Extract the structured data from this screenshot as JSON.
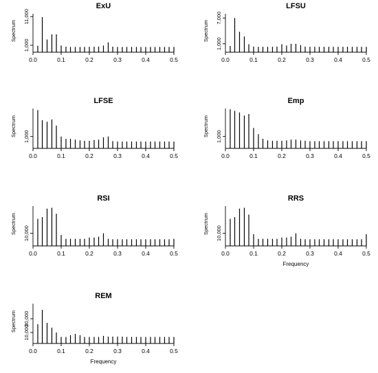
{
  "chart_data": [
    {
      "type": "bar",
      "title": "ExU",
      "ylabel": "Spectrum",
      "xlabel": "",
      "xlim": [
        0,
        0.5
      ],
      "x_ticks": [
        "0.0",
        "0.1",
        "0.2",
        "0.3",
        "0.4",
        "0.5"
      ],
      "y_ticks": [
        "1,000",
        "11,000"
      ],
      "ylim": [
        0,
        12000
      ],
      "x": [
        0.017,
        0.033,
        0.05,
        0.067,
        0.083,
        0.1,
        0.117,
        0.133,
        0.15,
        0.167,
        0.183,
        0.2,
        0.217,
        0.233,
        0.25,
        0.267,
        0.283,
        0.3,
        0.317,
        0.333,
        0.35,
        0.367,
        0.383,
        0.4,
        0.417,
        0.433,
        0.45,
        0.467,
        0.483,
        0.5
      ],
      "values": [
        800,
        10800,
        3000,
        4800,
        4800,
        900,
        500,
        400,
        400,
        400,
        400,
        450,
        500,
        550,
        900,
        2000,
        500,
        400,
        400,
        400,
        400,
        400,
        400,
        400,
        400,
        400,
        400,
        400,
        400,
        400
      ]
    },
    {
      "type": "bar",
      "title": "LFSU",
      "ylabel": "Spectrum",
      "xlabel": "",
      "xlim": [
        0,
        0.5
      ],
      "x_ticks": [
        "0.0",
        "0.1",
        "0.2",
        "0.3",
        "0.4",
        "0.5"
      ],
      "y_ticks": [
        "1,000",
        "7,000"
      ],
      "ylim": [
        0,
        8000
      ],
      "x": [
        0.017,
        0.033,
        0.05,
        0.067,
        0.083,
        0.1,
        0.117,
        0.133,
        0.15,
        0.167,
        0.183,
        0.2,
        0.217,
        0.233,
        0.25,
        0.267,
        0.283,
        0.3,
        0.317,
        0.333,
        0.35,
        0.367,
        0.383,
        0.4,
        0.417,
        0.433,
        0.45,
        0.467,
        0.483,
        0.5
      ],
      "values": [
        500,
        7000,
        3800,
        2700,
        900,
        350,
        300,
        300,
        300,
        300,
        350,
        900,
        600,
        1000,
        1000,
        700,
        350,
        300,
        300,
        300,
        300,
        300,
        300,
        300,
        300,
        300,
        300,
        300,
        300,
        300
      ]
    },
    {
      "type": "bar",
      "title": "LFSE",
      "ylabel": "Spectrum",
      "xlabel": "",
      "xlim": [
        0,
        0.5
      ],
      "x_ticks": [
        "0.0",
        "0.1",
        "0.2",
        "0.3",
        "0.4",
        "0.5"
      ],
      "y_ticks": [
        "1,000"
      ],
      "ylim": [
        0,
        4600
      ],
      "x": [
        0.017,
        0.033,
        0.05,
        0.067,
        0.083,
        0.1,
        0.117,
        0.133,
        0.15,
        0.167,
        0.183,
        0.2,
        0.217,
        0.233,
        0.25,
        0.267,
        0.283,
        0.3,
        0.317,
        0.333,
        0.35,
        0.367,
        0.383,
        0.4,
        0.417,
        0.433,
        0.45,
        0.467,
        0.483,
        0.5
      ],
      "values": [
        4400,
        3100,
        2900,
        3200,
        2400,
        1000,
        700,
        700,
        600,
        500,
        450,
        450,
        550,
        600,
        900,
        1000,
        400,
        350,
        350,
        350,
        350,
        350,
        350,
        350,
        350,
        350,
        350,
        350,
        350,
        350
      ]
    },
    {
      "type": "bar",
      "title": "Emp",
      "ylabel": "Spectrum",
      "xlabel": "",
      "xlim": [
        0,
        0.5
      ],
      "x_ticks": [
        "0.0",
        "0.1",
        "0.2",
        "0.3",
        "0.4",
        "0.5"
      ],
      "y_ticks": [
        "1,000"
      ],
      "ylim": [
        0,
        4600
      ],
      "x": [
        0.017,
        0.033,
        0.05,
        0.067,
        0.083,
        0.1,
        0.117,
        0.133,
        0.15,
        0.167,
        0.183,
        0.2,
        0.217,
        0.233,
        0.25,
        0.267,
        0.283,
        0.3,
        0.317,
        0.333,
        0.35,
        0.367,
        0.383,
        0.4,
        0.417,
        0.433,
        0.45,
        0.467,
        0.483,
        0.5
      ],
      "values": [
        4500,
        4300,
        4100,
        3700,
        3900,
        2100,
        1300,
        700,
        500,
        450,
        450,
        450,
        500,
        600,
        600,
        500,
        450,
        400,
        400,
        400,
        400,
        400,
        400,
        400,
        400,
        400,
        400,
        400,
        400,
        400
      ]
    },
    {
      "type": "bar",
      "title": "RSI",
      "ylabel": "Spectrum",
      "xlabel": "",
      "xlim": [
        0,
        0.5
      ],
      "x_ticks": [
        "0.0",
        "0.1",
        "0.2",
        "0.3",
        "0.4",
        "0.5"
      ],
      "y_ticks": [
        "10,000"
      ],
      "ylim": [
        0,
        42000
      ],
      "x": [
        0.017,
        0.033,
        0.05,
        0.067,
        0.083,
        0.1,
        0.117,
        0.133,
        0.15,
        0.167,
        0.183,
        0.2,
        0.217,
        0.233,
        0.25,
        0.267,
        0.283,
        0.3,
        0.317,
        0.333,
        0.35,
        0.367,
        0.383,
        0.4,
        0.417,
        0.433,
        0.45,
        0.467,
        0.483,
        0.5
      ],
      "values": [
        27000,
        29000,
        39000,
        40000,
        33000,
        8000,
        3500,
        3500,
        3500,
        3500,
        3500,
        5000,
        5000,
        6000,
        10000,
        3500,
        3000,
        3000,
        3000,
        3000,
        3000,
        3000,
        3000,
        3000,
        3000,
        3000,
        3000,
        3000,
        3000,
        3500
      ]
    },
    {
      "type": "bar",
      "title": "RRS",
      "ylabel": "Spectrum",
      "xlabel": "Frequency",
      "xlim": [
        0,
        0.5
      ],
      "x_ticks": [
        "0.0",
        "0.1",
        "0.2",
        "0.3",
        "0.4",
        "0.5"
      ],
      "y_ticks": [
        "10,000"
      ],
      "ylim": [
        0,
        42000
      ],
      "x": [
        0.017,
        0.033,
        0.05,
        0.067,
        0.083,
        0.1,
        0.117,
        0.133,
        0.15,
        0.167,
        0.183,
        0.2,
        0.217,
        0.233,
        0.25,
        0.267,
        0.283,
        0.3,
        0.317,
        0.333,
        0.35,
        0.367,
        0.383,
        0.4,
        0.417,
        0.433,
        0.45,
        0.467,
        0.483,
        0.5
      ],
      "values": [
        27000,
        29000,
        39000,
        40000,
        32000,
        9000,
        3500,
        3500,
        3500,
        3500,
        3500,
        5000,
        5000,
        6000,
        10000,
        3500,
        3000,
        3000,
        3000,
        3000,
        3000,
        3000,
        3000,
        3000,
        3000,
        3000,
        3000,
        3000,
        3000,
        9000
      ]
    },
    {
      "type": "bar",
      "title": "REM",
      "ylabel": "Spectrum",
      "xlabel": "Frequency",
      "xlim": [
        0,
        0.5
      ],
      "x_ticks": [
        "0.0",
        "0.1",
        "0.2",
        "0.3",
        "0.4",
        "0.5"
      ],
      "y_ticks": [
        "10,000",
        "30,000"
      ],
      "ylim": [
        0,
        52000
      ],
      "x": [
        0.017,
        0.033,
        0.05,
        0.067,
        0.083,
        0.1,
        0.117,
        0.133,
        0.15,
        0.167,
        0.183,
        0.2,
        0.217,
        0.233,
        0.25,
        0.267,
        0.283,
        0.3,
        0.317,
        0.333,
        0.35,
        0.367,
        0.383,
        0.4,
        0.417,
        0.433,
        0.45,
        0.467,
        0.483,
        0.5
      ],
      "values": [
        22000,
        43000,
        24000,
        17000,
        10000,
        3500,
        3500,
        6000,
        8000,
        6000,
        3500,
        3500,
        3500,
        3500,
        5000,
        4000,
        4000,
        4000,
        4000,
        3500,
        3500,
        3500,
        3500,
        3500,
        3500,
        3500,
        3500,
        3500,
        3500,
        3500
      ]
    }
  ]
}
